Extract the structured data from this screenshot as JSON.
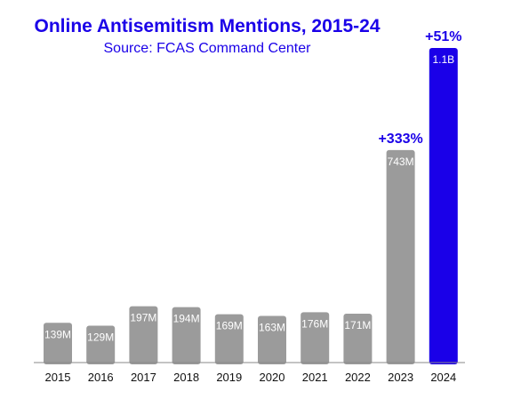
{
  "chart_data": {
    "type": "bar",
    "title": "Online Antisemitism Mentions, 2015-24",
    "subtitle": "Source: FCAS Command Center",
    "xlabel": "",
    "ylabel": "",
    "categories": [
      "2015",
      "2016",
      "2017",
      "2018",
      "2019",
      "2020",
      "2021",
      "2022",
      "2023",
      "2024"
    ],
    "values": [
      139,
      129,
      197,
      194,
      169,
      163,
      176,
      171,
      743,
      1100
    ],
    "value_labels": [
      "139M",
      "129M",
      "197M",
      "194M",
      "169M",
      "163M",
      "176M",
      "171M",
      "743M",
      "1.1B"
    ],
    "ylim": [
      0,
      1100
    ],
    "grid": false,
    "colors": [
      "#9b9b9b",
      "#9b9b9b",
      "#9b9b9b",
      "#9b9b9b",
      "#9b9b9b",
      "#9b9b9b",
      "#9b9b9b",
      "#9b9b9b",
      "#9b9b9b",
      "#1a00e8"
    ],
    "annotations": [
      {
        "category": "2023",
        "text": "+333%"
      },
      {
        "category": "2024",
        "text": "+51%"
      }
    ],
    "accent_color": "#1a00e8",
    "axis_color": "#8a8a8a"
  }
}
